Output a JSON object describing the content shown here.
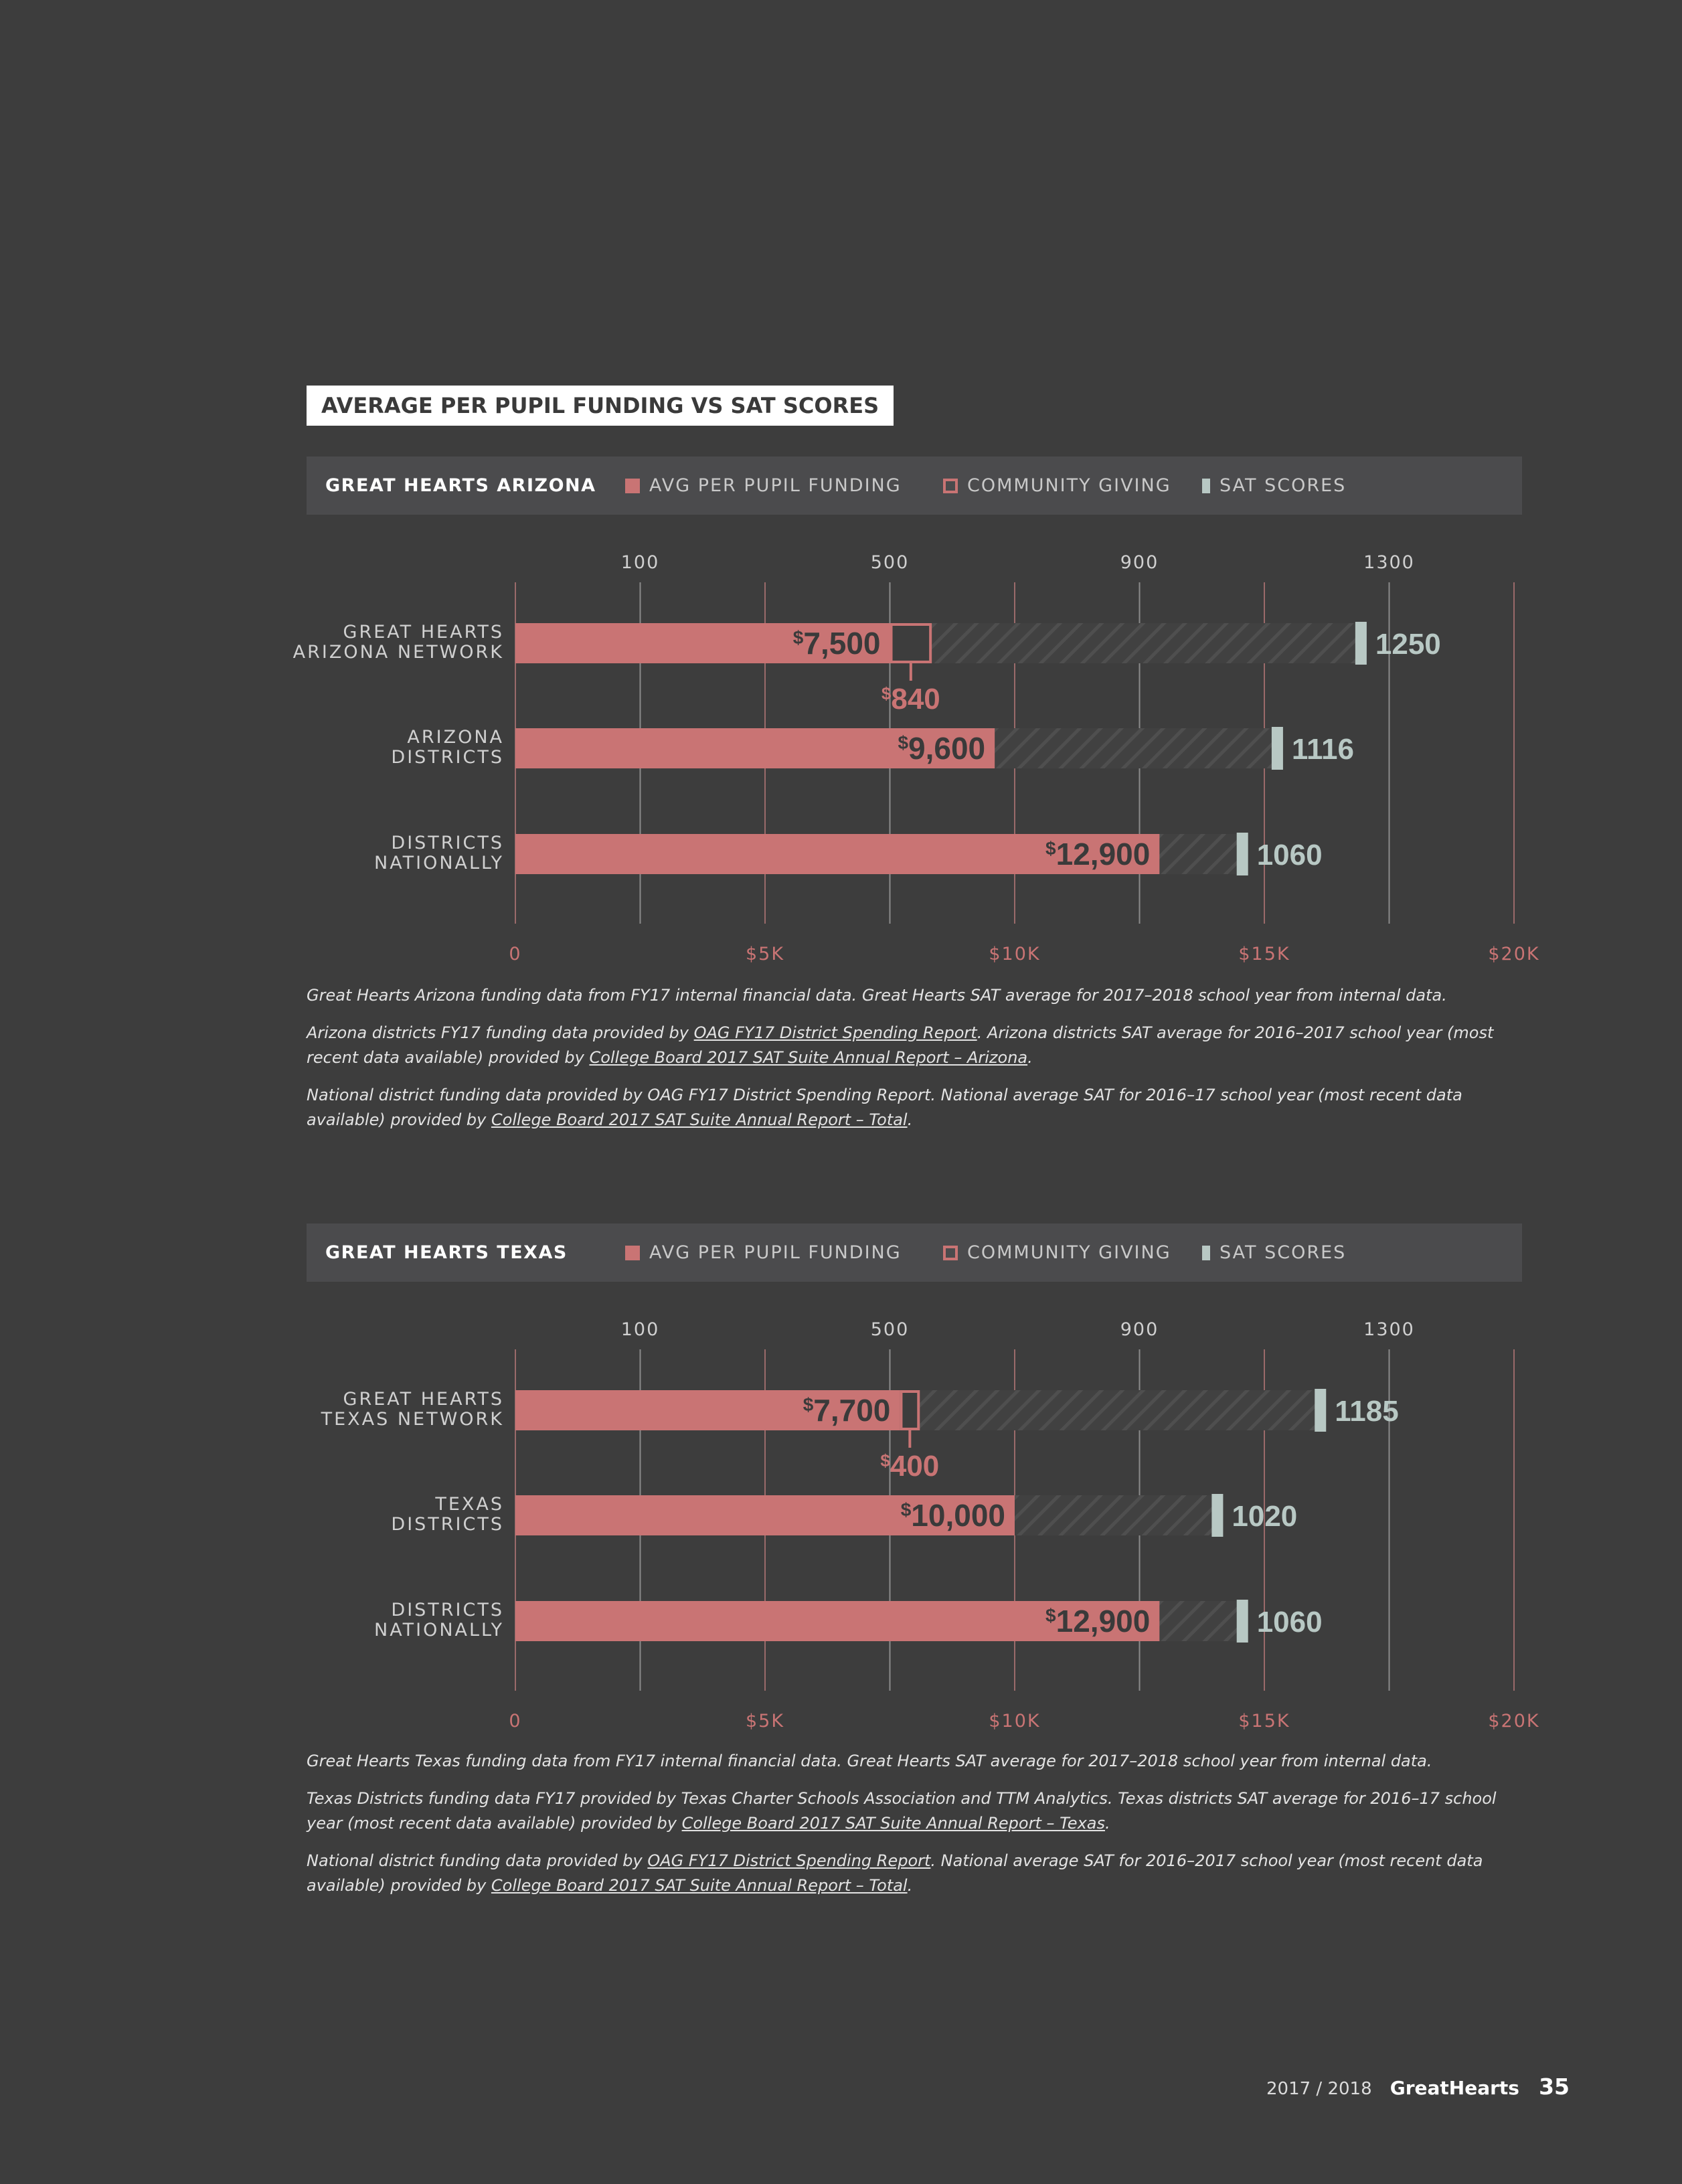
{
  "page": {
    "title": "AVERAGE PER PUPIL FUNDING VS SAT SCORES",
    "footer": {
      "year": "2017 / 2018",
      "brand": "GreatHearts",
      "page_number": "35"
    }
  },
  "legend": {
    "funding": "AVG PER PUPIL FUNDING",
    "giving": "COMMUNITY GIVING",
    "sat": "SAT SCORES"
  },
  "colors": {
    "funding": "#c97474",
    "sat": "#b8c8c4",
    "background": "#3d3d3d",
    "legend_bg": "#4b4b4d"
  },
  "notes": {
    "arizona": [
      {
        "parts": [
          {
            "t": "Great Hearts Arizona funding data from FY17 internal financial data. Great Hearts SAT average for 2017–2018 school year from internal data."
          }
        ]
      },
      {
        "parts": [
          {
            "t": "Arizona districts FY17 funding data provided by "
          },
          {
            "t": "OAG FY17 District Spending Report",
            "u": true
          },
          {
            "t": ". Arizona districts SAT average for 2016–2017 school year (most recent data available) provided by "
          },
          {
            "t": "College Board 2017 SAT Suite Annual Report – Arizona",
            "u": true
          },
          {
            "t": "."
          }
        ]
      },
      {
        "parts": [
          {
            "t": "National district funding data provided by OAG FY17 District Spending Report. National average SAT for 2016–17 school year (most recent data available) provided by "
          },
          {
            "t": "College Board 2017 SAT Suite Annual Report – Total",
            "u": true
          },
          {
            "t": "."
          }
        ]
      }
    ],
    "texas": [
      {
        "parts": [
          {
            "t": "Great Hearts Texas funding data from FY17 internal financial data. Great Hearts SAT average for 2017–2018 school year from internal data."
          }
        ]
      },
      {
        "parts": [
          {
            "t": "Texas Districts funding data FY17 provided by Texas Charter Schools Association and TTM Analytics. Texas districts SAT average for 2016–17 school year (most recent data available) provided by "
          },
          {
            "t": "College Board 2017 SAT Suite Annual Report – Texas",
            "u": true
          },
          {
            "t": "."
          }
        ]
      },
      {
        "parts": [
          {
            "t": "National district funding data provided by "
          },
          {
            "t": "OAG FY17 District Spending Report",
            "u": true
          },
          {
            "t": ". National average SAT for 2016–2017 school year (most recent data available) provided by "
          },
          {
            "t": "College Board 2017 SAT Suite Annual Report – Total",
            "u": true
          },
          {
            "t": "."
          }
        ]
      }
    ]
  },
  "chart_data": [
    {
      "type": "bar",
      "orientation": "horizontal",
      "title": "GREAT HEARTS ARIZONA",
      "series_names": [
        "AVG PER PUPIL FUNDING",
        "COMMUNITY GIVING",
        "SAT SCORES"
      ],
      "funding_axis": {
        "min": 0,
        "max": 20000,
        "tick_values": [
          0,
          5000,
          10000,
          15000,
          20000
        ],
        "tick_labels": [
          "0",
          "$5K",
          "$10K",
          "$15K",
          "$20K"
        ]
      },
      "sat_axis": {
        "min": -100,
        "max": 1500,
        "tick_values": [
          100,
          500,
          900,
          1300
        ],
        "tick_labels": [
          "100",
          "500",
          "900",
          "1300"
        ]
      },
      "grid": true,
      "rows": [
        {
          "label": [
            "GREAT HEARTS",
            "ARIZONA NETWORK"
          ],
          "funding": 7500,
          "funding_label": "7,500",
          "giving": 840,
          "giving_label": "840",
          "sat": 1250,
          "sat_label": "1250"
        },
        {
          "label": [
            "ARIZONA",
            "DISTRICTS"
          ],
          "funding": 9600,
          "funding_label": "9,600",
          "giving": 0,
          "sat": 1116,
          "sat_label": "1116"
        },
        {
          "label": [
            "DISTRICTS",
            "NATIONALLY"
          ],
          "funding": 12900,
          "funding_label": "12,900",
          "giving": 0,
          "sat": 1060,
          "sat_label": "1060"
        }
      ]
    },
    {
      "type": "bar",
      "orientation": "horizontal",
      "title": "GREAT HEARTS TEXAS",
      "series_names": [
        "AVG PER PUPIL FUNDING",
        "COMMUNITY GIVING",
        "SAT SCORES"
      ],
      "funding_axis": {
        "min": 0,
        "max": 20000,
        "tick_values": [
          0,
          5000,
          10000,
          15000,
          20000
        ],
        "tick_labels": [
          "0",
          "$5K",
          "$10K",
          "$15K",
          "$20K"
        ]
      },
      "sat_axis": {
        "min": -100,
        "max": 1500,
        "tick_values": [
          100,
          500,
          900,
          1300
        ],
        "tick_labels": [
          "100",
          "500",
          "900",
          "1300"
        ]
      },
      "grid": true,
      "rows": [
        {
          "label": [
            "GREAT HEARTS",
            "TEXAS NETWORK"
          ],
          "funding": 7700,
          "funding_label": "7,700",
          "giving": 400,
          "giving_label": "400",
          "sat": 1185,
          "sat_label": "1185"
        },
        {
          "label": [
            "TEXAS",
            "DISTRICTS"
          ],
          "funding": 10000,
          "funding_label": "10,000",
          "giving": 0,
          "sat": 1020,
          "sat_label": "1020"
        },
        {
          "label": [
            "DISTRICTS",
            "NATIONALLY"
          ],
          "funding": 12900,
          "funding_label": "12,900",
          "giving": 0,
          "sat": 1060,
          "sat_label": "1060"
        }
      ]
    }
  ]
}
